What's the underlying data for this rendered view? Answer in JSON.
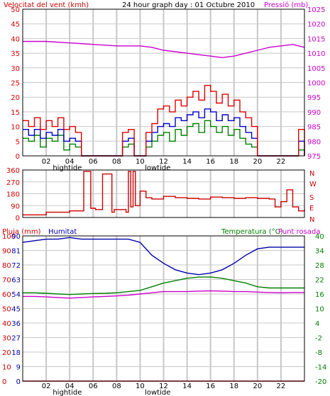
{
  "chart_data": [
    {
      "type": "line",
      "title": "24 hour graph day : 01 Octubre 2010",
      "left_axis_title": "Velocitat del vent (kmh)",
      "right_axis_title": "Pressió (mb)",
      "x_tick_labels": [
        "02",
        "04",
        "06",
        "08",
        "10",
        "12",
        "14",
        "16",
        "18",
        "20",
        "22"
      ],
      "tide_labels": [
        "hightide",
        "lowtide"
      ],
      "tide_hours": [
        3.8,
        11.5
      ],
      "left_ticks": [
        "0",
        "5",
        "10",
        "15",
        "20",
        "25",
        "30",
        "35",
        "40",
        "45",
        "50"
      ],
      "right_ticks": [
        "975",
        "980",
        "985",
        "990",
        "995",
        "1000",
        "1005",
        "1010",
        "1015",
        "1020",
        "1025"
      ],
      "xlim": [
        0,
        24
      ],
      "left_ylim": [
        0,
        50
      ],
      "right_ylim": [
        975,
        1025
      ],
      "grid": true,
      "colors": {
        "gust": "#e00000",
        "speed": "#0000cc",
        "temp": "#008000",
        "pressure": "#cc00cc",
        "grid": "#c8c8c8"
      },
      "series": [
        {
          "name": "Pressió (mb)",
          "axis": "right",
          "color": "#cc00cc",
          "x": [
            0,
            2,
            4,
            6,
            8,
            10,
            11,
            12,
            13,
            14,
            15,
            16,
            17,
            18,
            19,
            20,
            21,
            22,
            23,
            24
          ],
          "y": [
            1014,
            1014,
            1013.5,
            1013,
            1012.5,
            1012.5,
            1012,
            1011,
            1010.5,
            1010,
            1009.5,
            1009,
            1008.5,
            1009,
            1010,
            1011,
            1012,
            1012.5,
            1013,
            1012
          ]
        },
        {
          "name": "gust",
          "axis": "left",
          "color": "#e00000",
          "x": [
            0,
            0.5,
            1,
            1.5,
            2,
            2.5,
            3,
            3.5,
            4,
            4.5,
            5,
            6,
            7,
            8,
            8.5,
            9,
            9.5,
            10,
            10.5,
            11,
            11.5,
            12,
            12.5,
            13,
            13.5,
            14,
            14.5,
            15,
            15.5,
            16,
            16.5,
            17,
            17.5,
            18,
            18.5,
            19,
            19.5,
            20,
            21,
            22,
            23,
            23.5,
            24
          ],
          "y": [
            12,
            10,
            13,
            9,
            12,
            10,
            13,
            9,
            10,
            8,
            0,
            0,
            0,
            0,
            8,
            9,
            0,
            0,
            8,
            11,
            16,
            17,
            15,
            19,
            17,
            20,
            22,
            19,
            24,
            22,
            18,
            21,
            17,
            19,
            15,
            13,
            10,
            0,
            0,
            0,
            0,
            9,
            0
          ]
        },
        {
          "name": "speed",
          "axis": "left",
          "color": "#0000cc",
          "x": [
            0,
            0.5,
            1,
            1.5,
            2,
            2.5,
            3,
            3.5,
            4,
            4.5,
            5,
            6,
            7,
            8,
            8.5,
            9,
            9.5,
            10,
            10.5,
            11,
            11.5,
            12,
            12.5,
            13,
            13.5,
            14,
            14.5,
            15,
            15.5,
            16,
            16.5,
            17,
            17.5,
            18,
            18.5,
            19,
            19.5,
            20,
            21,
            22,
            23,
            23.5,
            24
          ],
          "y": [
            9,
            7,
            9,
            6,
            8,
            7,
            9,
            5,
            6,
            5,
            0,
            0,
            0,
            0,
            5,
            6,
            0,
            0,
            5,
            8,
            10,
            11,
            10,
            13,
            12,
            14,
            15,
            13,
            16,
            15,
            12,
            14,
            12,
            13,
            10,
            8,
            6,
            0,
            0,
            0,
            0,
            5,
            0
          ]
        },
        {
          "name": "average",
          "axis": "left",
          "color": "#008000",
          "x": [
            0,
            0.5,
            1,
            1.5,
            2,
            2.5,
            3,
            3.5,
            4,
            4.5,
            5,
            6,
            7,
            8,
            8.5,
            9,
            9.5,
            10,
            10.5,
            11,
            11.5,
            12,
            12.5,
            13,
            13.5,
            14,
            14.5,
            15,
            15.5,
            16,
            16.5,
            17,
            17.5,
            18,
            18.5,
            19,
            19.5,
            20,
            21,
            22,
            23,
            23.5,
            24
          ],
          "y": [
            6,
            5,
            7,
            3,
            6,
            5,
            7,
            2,
            4,
            3,
            0,
            0,
            0,
            0,
            3,
            4,
            0,
            0,
            3,
            5,
            7,
            8,
            5,
            9,
            7,
            10,
            11,
            8,
            12,
            10,
            8,
            10,
            7,
            9,
            6,
            4,
            3,
            0,
            0,
            0,
            0,
            2,
            0
          ]
        }
      ]
    },
    {
      "type": "line",
      "right_axis_labels": [
        "N",
        "W",
        "S",
        "E",
        "N"
      ],
      "left_ticks": [
        "360",
        "270",
        "180",
        "90",
        "0"
      ],
      "xlim": [
        0,
        24
      ],
      "ylim": [
        0,
        360
      ],
      "grid": true,
      "series": [
        {
          "name": "direction",
          "color": "#cc0000",
          "x": [
            0,
            2,
            4,
            5,
            5.2,
            5.6,
            5.8,
            6.2,
            6.8,
            7,
            7.6,
            7.8,
            8.5,
            8.8,
            9,
            9.2,
            9.4,
            9.6,
            10,
            10.5,
            11,
            12,
            13,
            14,
            15,
            16,
            17,
            18,
            19,
            20,
            21,
            21.5,
            22,
            22.5,
            23,
            23.5,
            24
          ],
          "y": [
            20,
            40,
            50,
            50,
            350,
            350,
            70,
            60,
            330,
            330,
            40,
            60,
            60,
            40,
            350,
            80,
            350,
            90,
            200,
            150,
            140,
            160,
            150,
            145,
            140,
            155,
            150,
            145,
            150,
            145,
            140,
            80,
            120,
            210,
            80,
            50,
            60
          ]
        }
      ]
    },
    {
      "type": "line",
      "left_axis_title": "Pluja (mm)",
      "left_axis_title_2": "Humitat",
      "right_axis_title": "Temperatura (°C)",
      "right_axis_title_2": "Punt rosada",
      "left_ticks_rain": [
        "0",
        "10",
        "20",
        "30",
        "40",
        "50",
        "60",
        "70",
        "80",
        "90",
        "100"
      ],
      "left_ticks_humidity": [
        "0",
        "9",
        "18",
        "27",
        "36",
        "45",
        "54",
        "63",
        "72",
        "81",
        "90"
      ],
      "right_ticks": [
        "-20",
        "-14",
        "-8",
        "-2",
        "4",
        "10",
        "16",
        "22",
        "28",
        "34",
        "40"
      ],
      "x_tick_labels": [
        "02",
        "04",
        "06",
        "08",
        "10",
        "12",
        "14",
        "16",
        "18",
        "20",
        "22"
      ],
      "tide_labels": [
        "hightide",
        "lowtide"
      ],
      "tide_hours": [
        3.8,
        11.5
      ],
      "xlim": [
        0,
        24
      ],
      "humidity_ylim": [
        0,
        90
      ],
      "temp_ylim": [
        -20,
        40
      ],
      "grid": true,
      "series": [
        {
          "name": "Humitat",
          "axis": "humidity",
          "color": "#0000aa",
          "x": [
            0,
            1,
            2,
            3,
            4,
            5,
            6,
            7,
            8,
            9,
            10,
            11,
            12,
            13,
            14,
            15,
            16,
            17,
            18,
            19,
            20,
            21,
            22,
            23,
            24
          ],
          "y": [
            86,
            87,
            88,
            88,
            89,
            88,
            88,
            88,
            88,
            88,
            86,
            78,
            73,
            69,
            67,
            66,
            67,
            69,
            73,
            78,
            82,
            83,
            83,
            83,
            83
          ]
        },
        {
          "name": "Temperatura (°C)",
          "axis": "temp",
          "color": "#008000",
          "x": [
            0,
            1,
            2,
            3,
            4,
            5,
            6,
            7,
            8,
            9,
            10,
            11,
            12,
            13,
            14,
            15,
            16,
            17,
            18,
            19,
            20,
            21,
            22,
            23,
            24
          ],
          "y": [
            16.5,
            16.5,
            16.3,
            16,
            15.8,
            16,
            16.2,
            16.3,
            16.5,
            17,
            17.5,
            19,
            20.5,
            21.5,
            22.5,
            23,
            23,
            22.5,
            21.5,
            20.5,
            19,
            18.5,
            18.5,
            18.5,
            18.5
          ]
        },
        {
          "name": "Punt rosada",
          "axis": "temp",
          "color": "#cc00cc",
          "x": [
            0,
            1,
            2,
            3,
            4,
            5,
            6,
            7,
            8,
            9,
            10,
            11,
            12,
            13,
            14,
            15,
            16,
            17,
            18,
            19,
            20,
            21,
            22,
            23,
            24
          ],
          "y": [
            15,
            15,
            14.8,
            14.5,
            14.3,
            14.5,
            14.8,
            15,
            15.2,
            15.5,
            16,
            16.5,
            17,
            17,
            17,
            17.2,
            17.3,
            17.2,
            17,
            17,
            16.8,
            16.6,
            16.5,
            16.6,
            16.6
          ]
        },
        {
          "name": "Pluja (mm)",
          "axis": "rain",
          "color": "#e00000",
          "x": [
            0,
            24
          ],
          "y": [
            0,
            0
          ]
        }
      ]
    }
  ]
}
